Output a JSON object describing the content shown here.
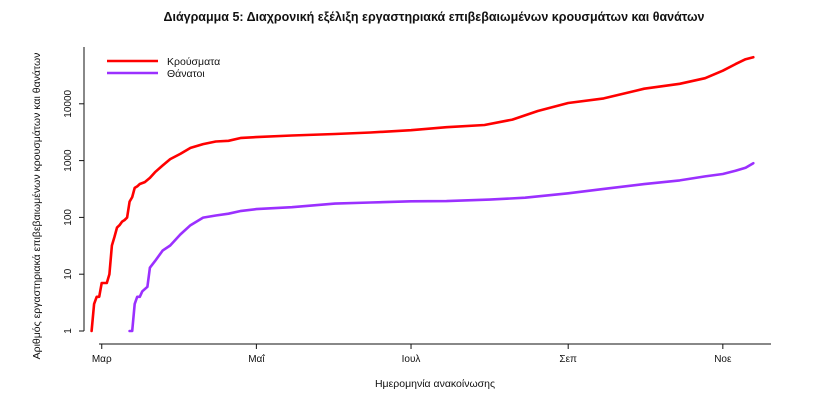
{
  "chart_data": {
    "type": "line",
    "title": "Διάγραμμα 5: Διαχρονική εξέλιξη εργαστηριακά επιβεβαιωμένων κρουσμάτων και θανάτων",
    "xlabel": "Ημερομηνία ανακοίνωσης",
    "ylabel": "Αριθμός εργαστηριακά επιβεβαιωμένων κρουσμάτων και θανάτων",
    "y_scale": "log",
    "ylim": [
      1,
      100000
    ],
    "y_ticks": [
      {
        "value": 1,
        "label": "1"
      },
      {
        "value": 10,
        "label": "10"
      },
      {
        "value": 100,
        "label": "100"
      },
      {
        "value": 1000,
        "label": "1000"
      },
      {
        "value": 10000,
        "label": "10000"
      }
    ],
    "xlim": [
      "2020-02-23",
      "2020-11-20"
    ],
    "x_ticks": [
      {
        "value": "2020-03-01",
        "label": "Μαρ"
      },
      {
        "value": "2020-05-01",
        "label": "Μαΐ"
      },
      {
        "value": "2020-07-01",
        "label": "Ιουλ"
      },
      {
        "value": "2020-09-01",
        "label": "Σεπ"
      },
      {
        "value": "2020-11-01",
        "label": "Νοε"
      }
    ],
    "legend_position": "top-left",
    "grid": false,
    "series": [
      {
        "name": "Κρούσματα",
        "color": "#ff0000",
        "points": [
          [
            "2020-02-26",
            1
          ],
          [
            "2020-02-27",
            3
          ],
          [
            "2020-02-28",
            4
          ],
          [
            "2020-02-29",
            4
          ],
          [
            "2020-03-01",
            7
          ],
          [
            "2020-03-03",
            7
          ],
          [
            "2020-03-04",
            10
          ],
          [
            "2020-03-05",
            32
          ],
          [
            "2020-03-06",
            45
          ],
          [
            "2020-03-07",
            66
          ],
          [
            "2020-03-08",
            73
          ],
          [
            "2020-03-09",
            84
          ],
          [
            "2020-03-10",
            90
          ],
          [
            "2020-03-11",
            99
          ],
          [
            "2020-03-12",
            190
          ],
          [
            "2020-03-13",
            228
          ],
          [
            "2020-03-14",
            331
          ],
          [
            "2020-03-15",
            352
          ],
          [
            "2020-03-16",
            387
          ],
          [
            "2020-03-18",
            418
          ],
          [
            "2020-03-20",
            495
          ],
          [
            "2020-03-22",
            624
          ],
          [
            "2020-03-25",
            821
          ],
          [
            "2020-03-28",
            1061
          ],
          [
            "2020-04-01",
            1314
          ],
          [
            "2020-04-05",
            1673
          ],
          [
            "2020-04-10",
            1955
          ],
          [
            "2020-04-15",
            2170
          ],
          [
            "2020-04-20",
            2235
          ],
          [
            "2020-04-25",
            2506
          ],
          [
            "2020-05-01",
            2591
          ],
          [
            "2020-05-15",
            2770
          ],
          [
            "2020-06-01",
            2937
          ],
          [
            "2020-06-15",
            3121
          ],
          [
            "2020-07-01",
            3432
          ],
          [
            "2020-07-15",
            3880
          ],
          [
            "2020-07-30",
            4227
          ],
          [
            "2020-08-10",
            5270
          ],
          [
            "2020-08-20",
            7472
          ],
          [
            "2020-09-01",
            10317
          ],
          [
            "2020-09-15",
            12452
          ],
          [
            "2020-10-01",
            18475
          ],
          [
            "2020-10-15",
            22520
          ],
          [
            "2020-10-25",
            28216
          ],
          [
            "2020-11-01",
            38297
          ],
          [
            "2020-11-06",
            50000
          ],
          [
            "2020-11-10",
            61000
          ],
          [
            "2020-11-13",
            66000
          ]
        ]
      },
      {
        "name": "Θάνατοι",
        "color": "#9b30ff",
        "points": [
          [
            "2020-03-12",
            1
          ],
          [
            "2020-03-13",
            1
          ],
          [
            "2020-03-14",
            3
          ],
          [
            "2020-03-15",
            4
          ],
          [
            "2020-03-16",
            4
          ],
          [
            "2020-03-17",
            5
          ],
          [
            "2020-03-19",
            6
          ],
          [
            "2020-03-20",
            13
          ],
          [
            "2020-03-22",
            17
          ],
          [
            "2020-03-25",
            26
          ],
          [
            "2020-03-28",
            32
          ],
          [
            "2020-04-01",
            50
          ],
          [
            "2020-04-05",
            73
          ],
          [
            "2020-04-10",
            99
          ],
          [
            "2020-04-15",
            108
          ],
          [
            "2020-04-20",
            116
          ],
          [
            "2020-04-25",
            130
          ],
          [
            "2020-05-01",
            140
          ],
          [
            "2020-05-15",
            151
          ],
          [
            "2020-06-01",
            175
          ],
          [
            "2020-06-15",
            183
          ],
          [
            "2020-07-01",
            192
          ],
          [
            "2020-07-15",
            194
          ],
          [
            "2020-08-01",
            206
          ],
          [
            "2020-08-15",
            222
          ],
          [
            "2020-09-01",
            266
          ],
          [
            "2020-09-15",
            317
          ],
          [
            "2020-10-01",
            385
          ],
          [
            "2020-10-15",
            449
          ],
          [
            "2020-10-25",
            528
          ],
          [
            "2020-11-01",
            581
          ],
          [
            "2020-11-06",
            660
          ],
          [
            "2020-11-10",
            750
          ],
          [
            "2020-11-13",
            900
          ]
        ]
      }
    ]
  }
}
